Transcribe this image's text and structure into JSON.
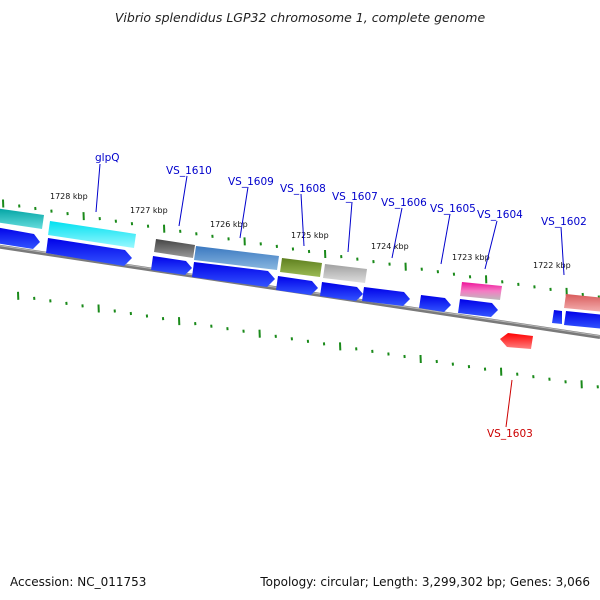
{
  "title": "Vibrio splendidus LGP32 chromosome 1, complete genome",
  "footer": {
    "accession": "Accession: NC_011753",
    "topology": "Topology: circular; Length: 3,299,302 bp; Genes: 3,066"
  },
  "colors": {
    "backbone": "#808080",
    "tick": "#1a8a1a",
    "cds": "#0000ee",
    "label_forward": "#0000cc",
    "label_reverse": "#cc0000",
    "leader": "#0000cc",
    "leader_reverse": "#cc0000"
  },
  "kbp_labels": [
    "1728 kbp",
    "1727 kbp",
    "1726 kbp",
    "1725 kbp",
    "1724 kbp",
    "1723 kbp",
    "1722 kbp"
  ],
  "gene_labels": [
    {
      "text": "glpQ",
      "strand": "+"
    },
    {
      "text": "VS_1610",
      "strand": "+"
    },
    {
      "text": "VS_1609",
      "strand": "+"
    },
    {
      "text": "VS_1608",
      "strand": "+"
    },
    {
      "text": "VS_1607",
      "strand": "+"
    },
    {
      "text": "VS_1606",
      "strand": "+"
    },
    {
      "text": "VS_1605",
      "strand": "+"
    },
    {
      "text": "VS_1604",
      "strand": "+"
    },
    {
      "text": "VS_1602",
      "strand": "+"
    },
    {
      "text": "VS_1603",
      "strand": "-"
    }
  ],
  "feature_colors": [
    "#00bcbc",
    "#00e5f0",
    "#555555",
    "#4a8cc8",
    "#6b8e23",
    "#b0b0b0",
    "#ee1199",
    "#e87878",
    "#ff0000"
  ]
}
